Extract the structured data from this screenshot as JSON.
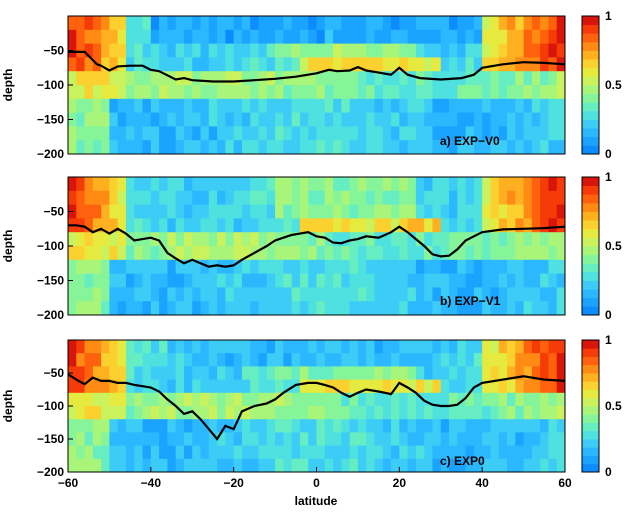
{
  "figure": {
    "xlabel": "latitude",
    "ylabel": "depth"
  },
  "chart_data": [
    {
      "type": "heatmap",
      "panel_label": "a) EXP−V0",
      "xlim": [
        -60,
        60
      ],
      "ylim": [
        -200,
        0
      ],
      "x_ticks": [],
      "y_ticks": [
        "-50",
        "-100",
        "-150",
        "-200"
      ],
      "colorbar": {
        "range": [
          0,
          1
        ],
        "ticks": [
          "0",
          "0.5",
          "1"
        ]
      },
      "line": {
        "x": [
          -60,
          -56,
          -55,
          -53,
          -52,
          -50,
          -48,
          -45,
          -42,
          -40,
          -38,
          -36,
          -34,
          -32,
          -30,
          -25,
          -20,
          -15,
          -10,
          -5,
          0,
          3,
          5,
          8,
          10,
          12,
          15,
          18,
          20,
          22,
          25,
          30,
          35,
          38,
          40,
          45,
          50,
          55,
          60
        ],
        "y": [
          -52,
          -52,
          -58,
          -70,
          -72,
          -79,
          -73,
          -72,
          -72,
          -78,
          -80,
          -86,
          -92,
          -90,
          -93,
          -95,
          -95,
          -93,
          -91,
          -88,
          -83,
          -78,
          -80,
          -79,
          -74,
          -79,
          -82,
          -85,
          -75,
          -85,
          -90,
          -92,
          -90,
          -85,
          -75,
          -70,
          -67,
          -68,
          -70
        ]
      }
    },
    {
      "type": "heatmap",
      "panel_label": "b) EXP−V1",
      "xlim": [
        -60,
        60
      ],
      "ylim": [
        -200,
        0
      ],
      "x_ticks": [],
      "y_ticks": [
        "-50",
        "-100",
        "-150",
        "-200"
      ],
      "colorbar": {
        "range": [
          0,
          1
        ],
        "ticks": [
          "0",
          "0.5",
          "1"
        ]
      },
      "line": {
        "x": [
          -60,
          -58,
          -56,
          -54,
          -52,
          -50,
          -48,
          -46,
          -44,
          -42,
          -40,
          -38,
          -36,
          -34,
          -32,
          -30,
          -28,
          -26,
          -24,
          -22,
          -20,
          -18,
          -15,
          -12,
          -10,
          -8,
          -6,
          -4,
          -2,
          0,
          2,
          4,
          6,
          8,
          10,
          12,
          15,
          18,
          20,
          22,
          24,
          26,
          28,
          30,
          32,
          34,
          36,
          38,
          40,
          45,
          50,
          55,
          60
        ],
        "y": [
          -70,
          -70,
          -72,
          -80,
          -75,
          -82,
          -75,
          -82,
          -92,
          -90,
          -88,
          -92,
          -110,
          -118,
          -125,
          -120,
          -125,
          -130,
          -128,
          -130,
          -128,
          -120,
          -110,
          -100,
          -92,
          -88,
          -84,
          -82,
          -80,
          -86,
          -88,
          -95,
          -96,
          -92,
          -90,
          -86,
          -88,
          -80,
          -72,
          -80,
          -90,
          -100,
          -112,
          -115,
          -114,
          -105,
          -92,
          -86,
          -80,
          -76,
          -75,
          -74,
          -72
        ]
      }
    },
    {
      "type": "heatmap",
      "panel_label": "c) EXP0",
      "xlim": [
        -60,
        60
      ],
      "ylim": [
        -200,
        0
      ],
      "x_ticks": [
        "-60",
        "-40",
        "-20",
        "0",
        "20",
        "40",
        "60"
      ],
      "y_ticks": [
        "-50",
        "-100",
        "-150",
        "-200"
      ],
      "colorbar": {
        "range": [
          0,
          1
        ],
        "ticks": [
          "0",
          "0.5",
          "1"
        ]
      },
      "line": {
        "x": [
          -60,
          -58,
          -56,
          -54,
          -52,
          -50,
          -48,
          -46,
          -44,
          -42,
          -40,
          -38,
          -36,
          -34,
          -32,
          -30,
          -28,
          -26,
          -24,
          -22,
          -20,
          -18,
          -15,
          -12,
          -10,
          -8,
          -5,
          -2,
          0,
          2,
          4,
          6,
          8,
          10,
          12,
          15,
          18,
          20,
          22,
          24,
          26,
          28,
          30,
          32,
          34,
          36,
          38,
          40,
          45,
          50,
          55,
          60
        ],
        "y": [
          -52,
          -60,
          -67,
          -57,
          -62,
          -62,
          -65,
          -65,
          -68,
          -70,
          -72,
          -78,
          -90,
          -100,
          -112,
          -108,
          -120,
          -135,
          -150,
          -130,
          -135,
          -108,
          -100,
          -96,
          -90,
          -80,
          -68,
          -65,
          -65,
          -68,
          -72,
          -80,
          -86,
          -80,
          -75,
          -78,
          -82,
          -65,
          -72,
          -80,
          -92,
          -98,
          -100,
          -100,
          -98,
          -88,
          -72,
          -65,
          -60,
          -55,
          -60,
          -62
        ]
      }
    }
  ]
}
